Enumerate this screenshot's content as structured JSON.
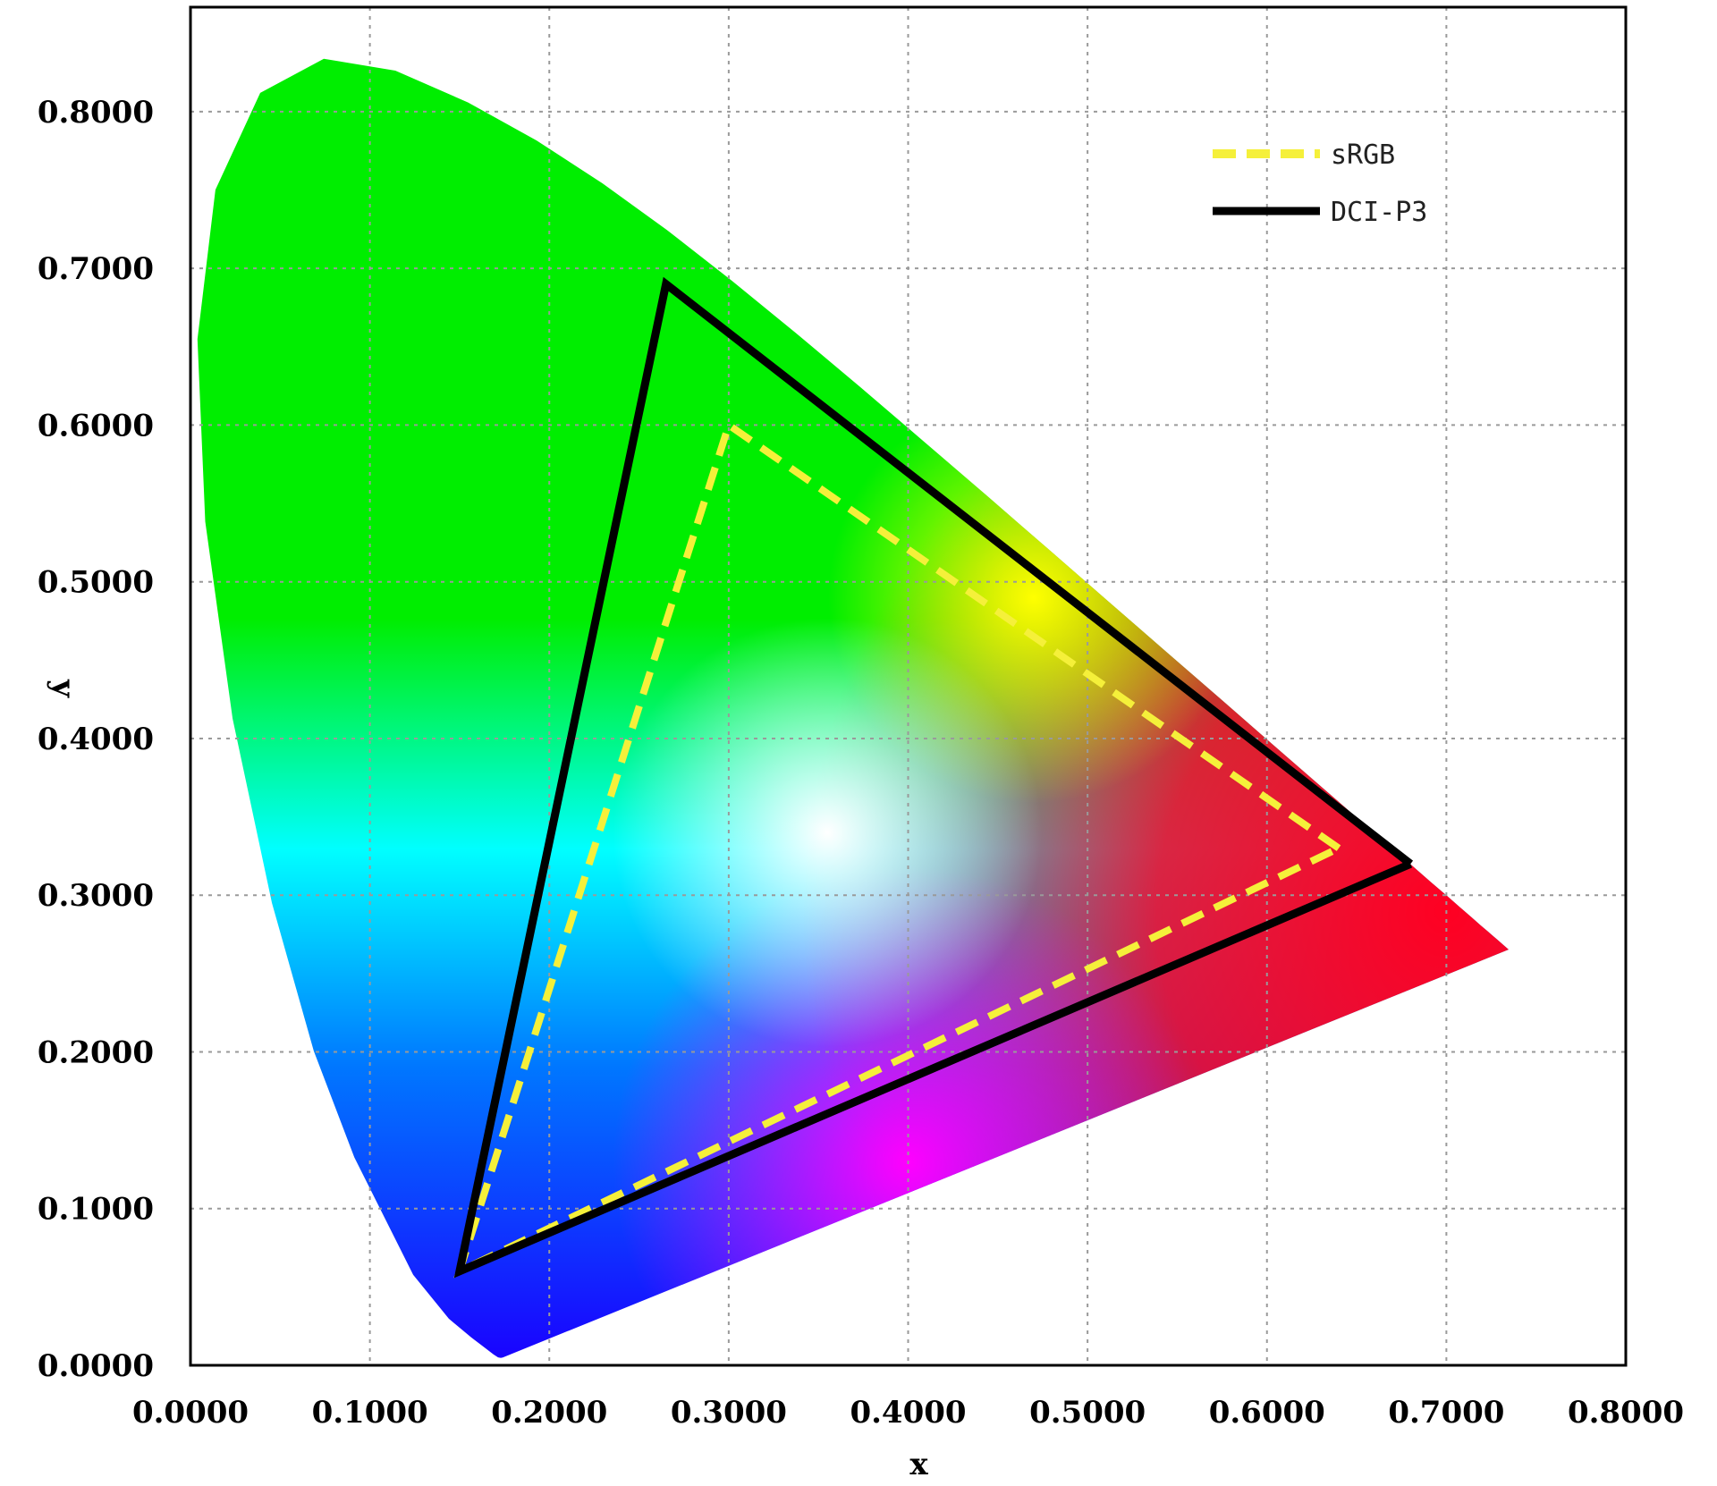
{
  "chart_data": {
    "type": "scatter",
    "title": "",
    "xlabel": "x",
    "ylabel": "y",
    "xlim": [
      0,
      0.8
    ],
    "ylim": [
      0,
      0.8667
    ],
    "x_ticks": [
      "0.0000",
      "0.1000",
      "0.2000",
      "0.3000",
      "0.4000",
      "0.5000",
      "0.6000",
      "0.7000",
      "0.8000"
    ],
    "y_ticks": [
      "0.0000",
      "0.1000",
      "0.2000",
      "0.3000",
      "0.4000",
      "0.5000",
      "0.6000",
      "0.7000",
      "0.8000"
    ],
    "grid": true,
    "legend_position": "top-right",
    "locus": {
      "x": [
        0.1741,
        0.1738,
        0.1733,
        0.1726,
        0.1714,
        0.1689,
        0.1644,
        0.1566,
        0.144,
        0.1241,
        0.0913,
        0.0687,
        0.0454,
        0.0235,
        0.0082,
        0.0039,
        0.0139,
        0.0389,
        0.0743,
        0.1142,
        0.1547,
        0.1929,
        0.2296,
        0.2658,
        0.3016,
        0.3373,
        0.3731,
        0.4087,
        0.4441,
        0.4788,
        0.5125,
        0.5448,
        0.5752,
        0.6029,
        0.627,
        0.6482,
        0.6658,
        0.6801,
        0.6915,
        0.7006,
        0.7079,
        0.714,
        0.719,
        0.723,
        0.726,
        0.7283,
        0.73,
        0.7347
      ],
      "y": [
        0.005,
        0.0049,
        0.0048,
        0.0048,
        0.0051,
        0.0069,
        0.0109,
        0.0177,
        0.0297,
        0.0578,
        0.1327,
        0.2007,
        0.295,
        0.4127,
        0.5384,
        0.6548,
        0.7502,
        0.812,
        0.8338,
        0.8262,
        0.8059,
        0.7816,
        0.7543,
        0.7243,
        0.6923,
        0.6589,
        0.6245,
        0.5896,
        0.5547,
        0.5202,
        0.4866,
        0.4544,
        0.4242,
        0.3965,
        0.3725,
        0.3514,
        0.334,
        0.3197,
        0.3083,
        0.2993,
        0.292,
        0.2859,
        0.2809,
        0.277,
        0.274,
        0.2717,
        0.27,
        0.2653
      ]
    },
    "series": [
      {
        "name": "sRGB",
        "style": "dashed",
        "color": "#f5f03a",
        "x": [
          0.64,
          0.3,
          0.15,
          0.64
        ],
        "y": [
          0.33,
          0.6,
          0.06,
          0.33
        ]
      },
      {
        "name": "DCI-P3",
        "style": "solid",
        "color": "#000000",
        "x": [
          0.68,
          0.265,
          0.15,
          0.68
        ],
        "y": [
          0.32,
          0.69,
          0.06,
          0.32
        ]
      }
    ],
    "gradient_colors": {
      "red": "#ff0022",
      "green": "#00ee00",
      "blue": "#1a00ff",
      "white": "#ffffff",
      "cyan": "#00ffff",
      "yellow": "#ffff00",
      "magenta": "#ff00ff"
    }
  }
}
